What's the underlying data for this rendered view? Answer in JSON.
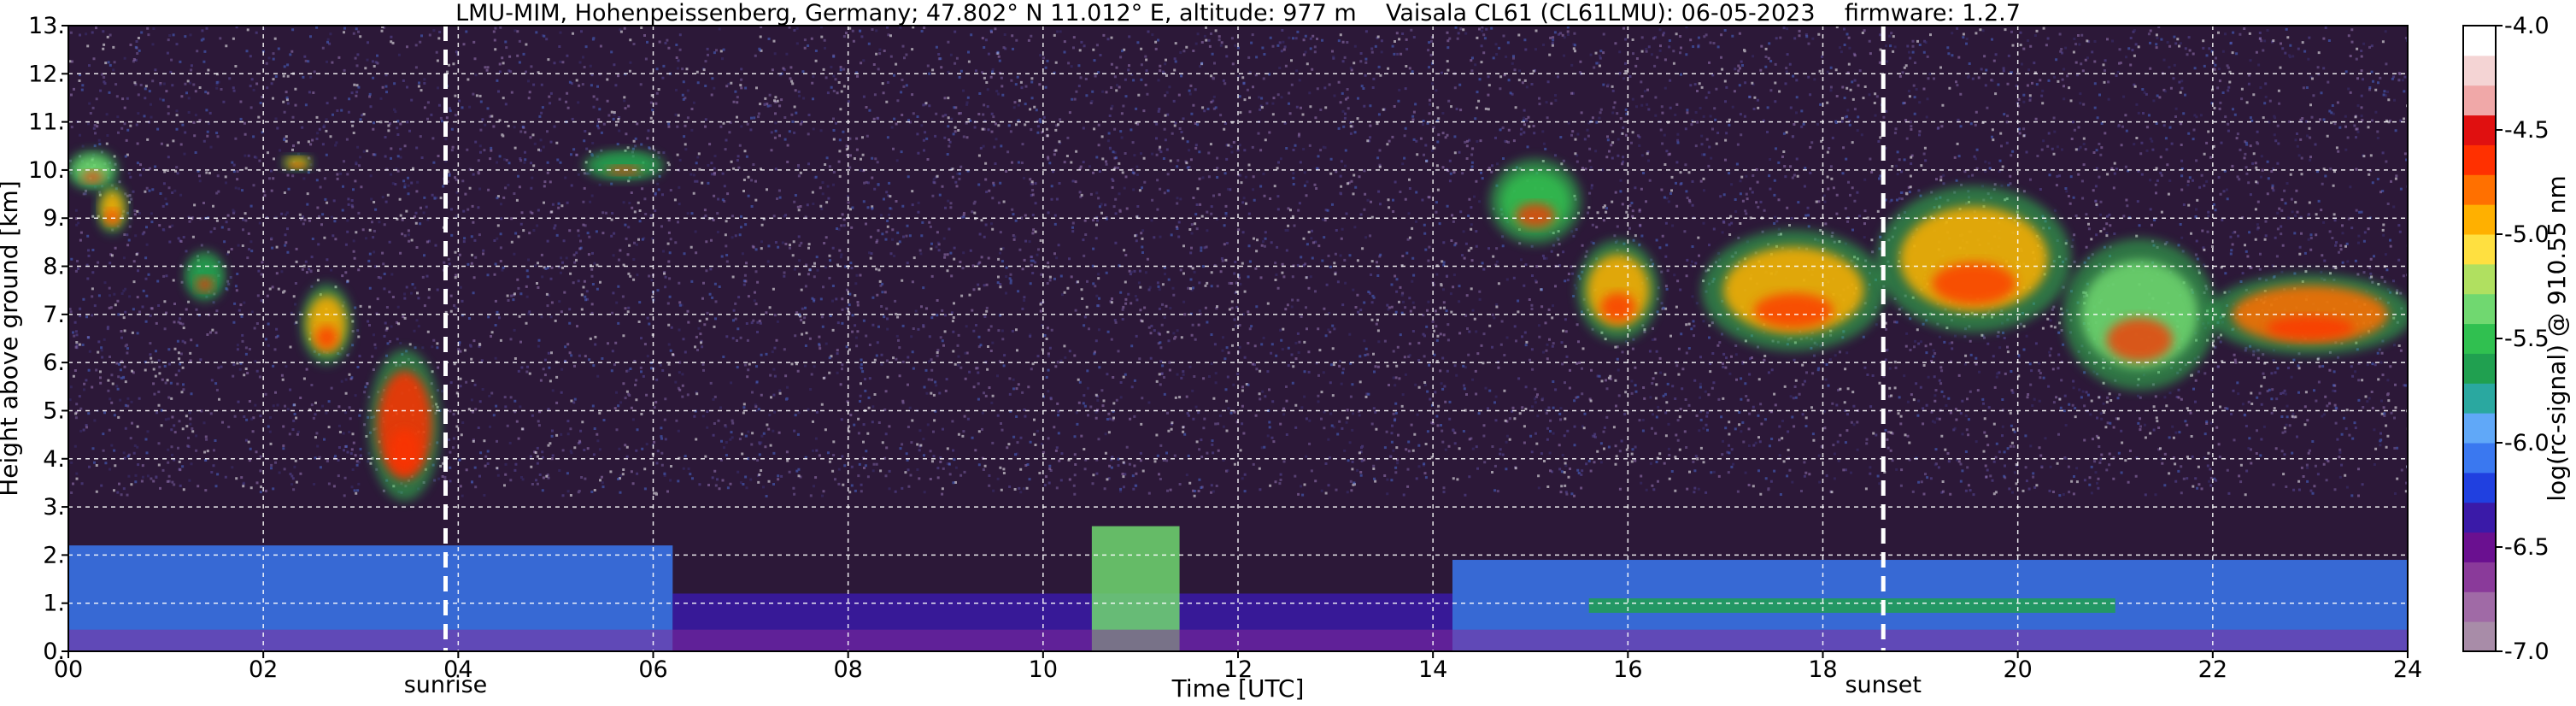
{
  "chart_data": {
    "type": "heatmap",
    "title": "LMU-MIM, Hohenpeissenberg, Germany; 47.802° N 11.012° E, altitude: 977 m    Vaisala CL61 (CL61LMU): 06-05-2023    firmware: 1.2.7",
    "xlabel": "Time [UTC]",
    "ylabel": "Height above ground [km]",
    "xlim": [
      0,
      24
    ],
    "ylim": [
      0,
      13
    ],
    "x_ticks": [
      0,
      2,
      4,
      6,
      8,
      10,
      12,
      14,
      16,
      18,
      20,
      22,
      24
    ],
    "x_tick_labels": [
      "00",
      "02",
      "04",
      "06",
      "08",
      "10",
      "12",
      "14",
      "16",
      "18",
      "20",
      "22",
      "24"
    ],
    "y_ticks": [
      0,
      1,
      2,
      3,
      4,
      5,
      6,
      7,
      8,
      9,
      10,
      11,
      12,
      13
    ],
    "y_tick_labels": [
      "0.",
      "1.",
      "2.",
      "3.",
      "4.",
      "5.",
      "6.",
      "7.",
      "8.",
      "9.",
      "10.",
      "11.",
      "12.",
      "13."
    ],
    "grid": true,
    "events": [
      {
        "label": "sunrise",
        "time": 3.87
      },
      {
        "label": "sunset",
        "time": 18.62
      }
    ],
    "colorbar": {
      "label": "log(rc-signal) @ 910.55 nm",
      "range": [
        -7.0,
        -4.0
      ],
      "ticks": [
        -7.0,
        -6.5,
        -6.0,
        -5.5,
        -5.0,
        -4.5,
        -4.0
      ],
      "tick_labels": [
        "-7.0",
        "-6.5",
        "-6.0",
        "-5.5",
        "-5.0",
        "-4.5",
        "-4.0"
      ],
      "colors": [
        "#a88ca8",
        "#a06aa6",
        "#8a3a9a",
        "#6a1090",
        "#3a1aa8",
        "#2040e0",
        "#3a78f0",
        "#60a8f8",
        "#2aa8a0",
        "#20a050",
        "#30c050",
        "#70d870",
        "#b0e060",
        "#ffe040",
        "#ffb000",
        "#ff7000",
        "#ff3000",
        "#e01010",
        "#f0a8a8",
        "#f4d4d4",
        "#ffffff"
      ]
    },
    "cloud_layers": [
      {
        "t0": 0.0,
        "t1": 0.5,
        "h0": 9.6,
        "h1": 10.4,
        "level": -5.3
      },
      {
        "t0": 0.3,
        "t1": 0.6,
        "h0": 8.7,
        "h1": 9.7,
        "level": -5.0
      },
      {
        "t0": 2.2,
        "t1": 2.5,
        "h0": 10.0,
        "h1": 10.3,
        "level": -5.0
      },
      {
        "t0": 1.2,
        "t1": 1.6,
        "h0": 7.3,
        "h1": 8.3,
        "level": -5.6
      },
      {
        "t0": 2.4,
        "t1": 2.9,
        "h0": 6.0,
        "h1": 7.6,
        "level": -5.0
      },
      {
        "t0": 3.1,
        "t1": 3.8,
        "h0": 3.2,
        "h1": 6.2,
        "level": -4.7
      },
      {
        "t0": 5.3,
        "t1": 6.1,
        "h0": 9.8,
        "h1": 10.4,
        "level": -5.6
      },
      {
        "t0": 14.6,
        "t1": 15.5,
        "h0": 8.5,
        "h1": 10.2,
        "level": -5.5
      },
      {
        "t0": 15.5,
        "t1": 16.3,
        "h0": 6.5,
        "h1": 8.5,
        "level": -5.0
      },
      {
        "t0": 16.8,
        "t1": 18.6,
        "h0": 6.3,
        "h1": 8.7,
        "level": -5.0
      },
      {
        "t0": 18.6,
        "t1": 20.5,
        "h0": 6.7,
        "h1": 9.6,
        "level": -4.9
      },
      {
        "t0": 20.5,
        "t1": 22.0,
        "h0": 5.5,
        "h1": 8.5,
        "level": -5.3
      },
      {
        "t0": 22.0,
        "t1": 24.0,
        "h0": 6.2,
        "h1": 7.8,
        "level": -4.8
      }
    ],
    "boundary_layer": [
      {
        "t0": 0,
        "t1": 6.2,
        "h0": 0,
        "h1": 2.2,
        "level": -6.1
      },
      {
        "t0": 6.2,
        "t1": 14.2,
        "h0": 0,
        "h1": 1.2,
        "level": -6.3
      },
      {
        "t0": 10.5,
        "t1": 11.4,
        "h0": 0,
        "h1": 2.6,
        "level": -5.3
      },
      {
        "t0": 14.2,
        "t1": 24,
        "h0": 0,
        "h1": 1.9,
        "level": -6.1
      },
      {
        "t0": 15.6,
        "t1": 21.0,
        "h0": 0.8,
        "h1": 1.1,
        "level": -5.7
      }
    ]
  }
}
